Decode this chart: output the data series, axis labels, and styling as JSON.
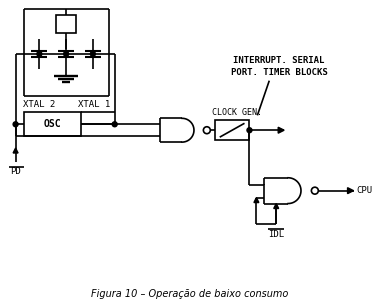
{
  "title": "Figura 10 – Operação de baixo consumo",
  "bg_color": "#ffffff",
  "line_color": "#000000",
  "lw": 1.2,
  "labels": {
    "xtal2": "XTAL 2",
    "xtal1": "XTAL 1",
    "osc": "OSC",
    "clock_gen": "CLOCK GEN.",
    "interrupt": "INTERRUPT. SERIAL",
    "port_timer": "PORT. TIMER BLOCKS",
    "pd": "PD",
    "idl": "IDL",
    "cpu": "CPU"
  }
}
